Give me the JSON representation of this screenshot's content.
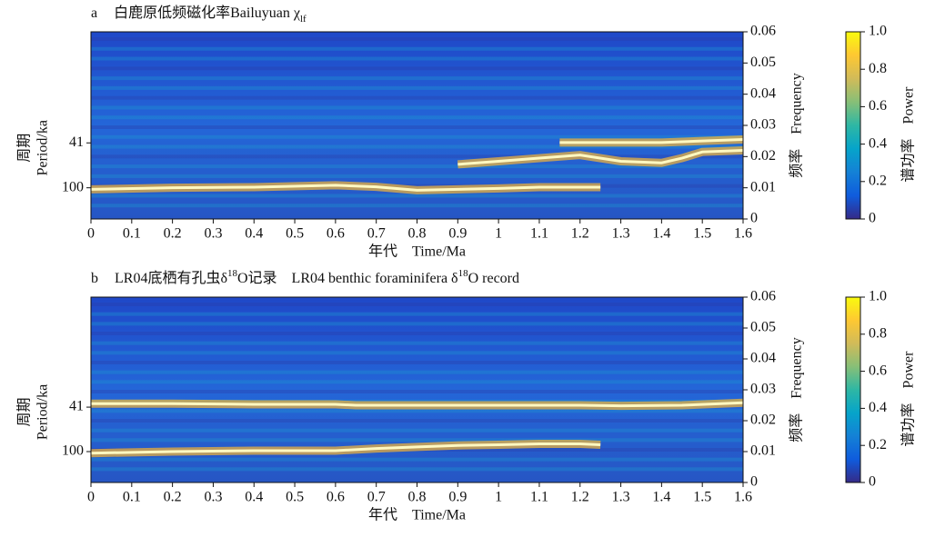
{
  "chart_data": [
    {
      "type": "spectrogram",
      "title": [
        {
          "text": "a"
        },
        {
          "text": "白鹿原低频磁化率"
        },
        {
          "text": "Bailuyuan χ"
        },
        {
          "text": "lf",
          "sub": true
        }
      ],
      "xlabel": "年代　Time/Ma",
      "ylabel": [
        "周期",
        "Period/ka"
      ],
      "y2label": "频率　Frequency",
      "clabel": "谱功率　Power",
      "xlim": [
        0,
        1.6
      ],
      "xticks": [
        0,
        0.1,
        0.2,
        0.3,
        0.4,
        0.5,
        0.6,
        0.7,
        0.8,
        0.9,
        1.0,
        1.1,
        1.2,
        1.3,
        1.4,
        1.5,
        1.6
      ],
      "ylim": [
        0,
        0.06
      ],
      "yticks": [
        0,
        0.01,
        0.02,
        0.03,
        0.04,
        0.05,
        0.06
      ],
      "period_ticks": [
        41,
        100
      ],
      "clim": [
        0,
        1
      ],
      "cticks": [
        0,
        0.2,
        0.4,
        0.6,
        0.8,
        {
          "value": 1,
          "label": "1.0"
        }
      ],
      "colormap": [
        "#352a87",
        "#0f5cdd",
        "#1481d6",
        "#06a4ca",
        "#2eb7a4",
        "#87bf77",
        "#d1bb59",
        "#fec832",
        "#f9fb0e"
      ],
      "series": [
        {
          "color": "#fff8c0",
          "x": [
            0,
            0.2,
            0.4,
            0.6,
            0.7,
            0.8,
            0.9,
            1.0,
            1.1,
            1.2,
            1.25
          ],
          "values": [
            0.0095,
            0.01,
            0.0102,
            0.0108,
            0.0103,
            0.0092,
            0.0095,
            0.0098,
            0.0102,
            0.0102,
            0.0102
          ]
        },
        {
          "color": "#fff8c0",
          "x": [
            0.9,
            1.0,
            1.1,
            1.2,
            1.3,
            1.4,
            1.45,
            1.5,
            1.6
          ],
          "values": [
            0.0175,
            0.0185,
            0.0195,
            0.0205,
            0.0185,
            0.018,
            0.0195,
            0.0215,
            0.022
          ]
        },
        {
          "color": "#fff8c0",
          "x": [
            1.15,
            1.3,
            1.4,
            1.5,
            1.6
          ],
          "values": [
            0.0245,
            0.0245,
            0.0245,
            0.025,
            0.0255
          ]
        }
      ]
    },
    {
      "type": "spectrogram",
      "title": [
        {
          "text": "b"
        },
        {
          "text": "LR04底栖有孔虫δ"
        },
        {
          "text": "18",
          "sup": true
        },
        {
          "text": "O记录　LR04 benthic foraminifera δ"
        },
        {
          "text": "18",
          "sup": true
        },
        {
          "text": "O record"
        }
      ],
      "xlabel": "年代　Time/Ma",
      "ylabel": [
        "周期",
        "Period/ka"
      ],
      "y2label": "频率　Frequency",
      "clabel": "谱功率　Power",
      "xlim": [
        0,
        1.6
      ],
      "xticks": [
        0,
        0.1,
        0.2,
        0.3,
        0.4,
        0.5,
        0.6,
        0.7,
        0.8,
        0.9,
        1.0,
        1.1,
        1.2,
        1.3,
        1.4,
        1.5,
        1.6
      ],
      "ylim": [
        0,
        0.06
      ],
      "yticks": [
        0,
        0.01,
        0.02,
        0.03,
        0.04,
        0.05,
        0.06
      ],
      "period_ticks": [
        41,
        100
      ],
      "clim": [
        0,
        1
      ],
      "cticks": [
        0,
        0.2,
        0.4,
        0.6,
        0.8,
        {
          "value": 1,
          "label": "1.0"
        }
      ],
      "colormap": [
        "#352a87",
        "#0f5cdd",
        "#1481d6",
        "#06a4ca",
        "#2eb7a4",
        "#87bf77",
        "#d1bb59",
        "#fec832",
        "#f9fb0e"
      ],
      "series": [
        {
          "color": "#fff8c0",
          "x": [
            0,
            0.2,
            0.4,
            0.6,
            0.65,
            0.8,
            1.0,
            1.2,
            1.3,
            1.45,
            1.6
          ],
          "values": [
            0.0255,
            0.0255,
            0.0253,
            0.0253,
            0.025,
            0.025,
            0.025,
            0.025,
            0.0248,
            0.025,
            0.0258
          ]
        },
        {
          "color": "#fff8c0",
          "x": [
            0,
            0.2,
            0.4,
            0.6,
            0.7,
            0.8,
            0.9,
            1.0,
            1.1,
            1.2,
            1.25
          ],
          "values": [
            0.0095,
            0.01,
            0.0103,
            0.0103,
            0.011,
            0.0115,
            0.012,
            0.0122,
            0.0125,
            0.0125,
            0.0122
          ]
        }
      ]
    }
  ]
}
